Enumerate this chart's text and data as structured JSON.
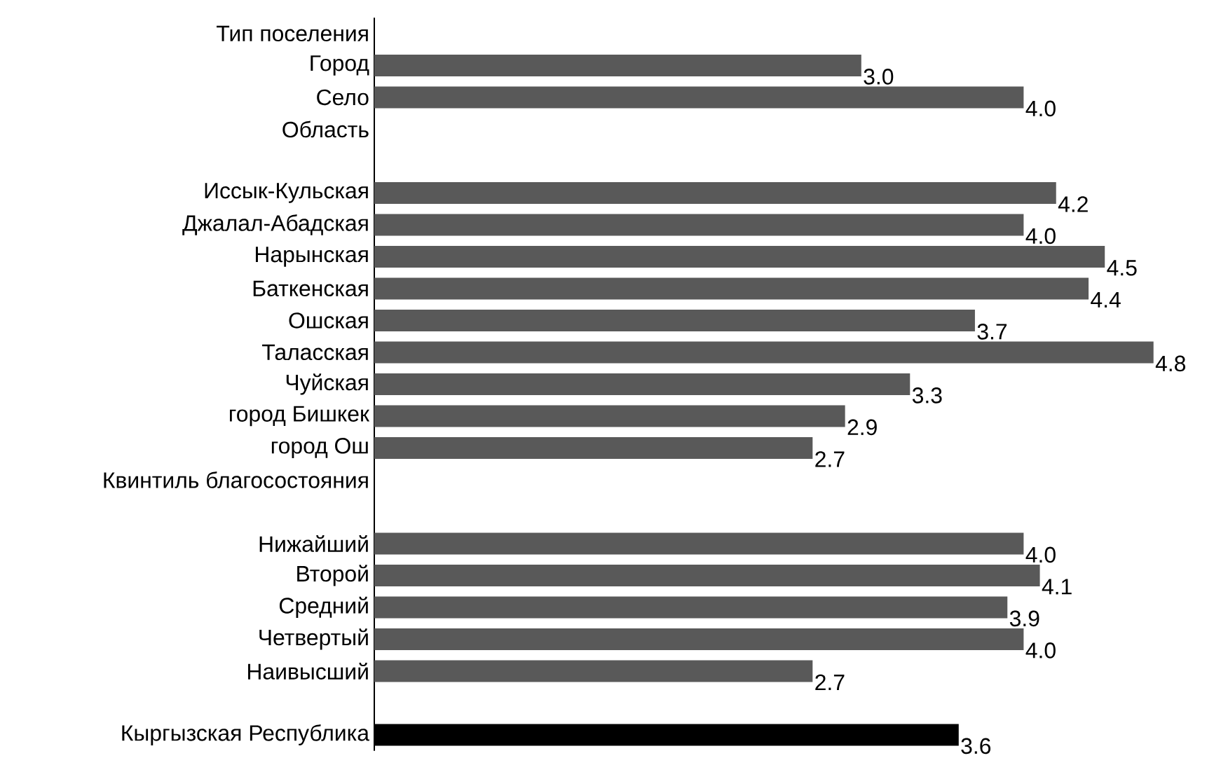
{
  "chart_data": {
    "type": "bar",
    "orientation": "horizontal",
    "categories": [
      "Тип поселения",
      "Город",
      "Село",
      "Область",
      null,
      "Иссык-Кульская",
      "Джалал-Абадская",
      "Нарынская",
      "Баткенская",
      "Ошская",
      "Таласская",
      "Чуйская",
      "город  Бишкек",
      "город Ош",
      "Квинтиль благосостояния",
      null,
      "Нижайший",
      "Второй",
      "Средний",
      "Четвертый",
      "Наивысший",
      null,
      "Кыргызская Республика"
    ],
    "values": [
      null,
      3.0,
      4.0,
      null,
      null,
      4.2,
      4.0,
      4.5,
      4.4,
      3.7,
      4.8,
      3.3,
      2.9,
      2.7,
      null,
      null,
      4.0,
      4.1,
      3.9,
      4.0,
      2.7,
      null,
      3.6
    ],
    "value_labels": [
      null,
      "3.0",
      "4.0",
      null,
      null,
      "4.2",
      "4.0",
      "4.5",
      "4.4",
      "3.7",
      "4.8",
      "3.3",
      "2.9",
      "2.7",
      null,
      null,
      "4.0",
      "4.1",
      "3.9",
      "4.0",
      "2.7",
      null,
      "3.6"
    ],
    "colors": [
      "#595959",
      "#595959",
      "#595959",
      "#595959",
      "#595959",
      "#595959",
      "#595959",
      "#595959",
      "#595959",
      "#595959",
      "#595959",
      "#595959",
      "#595959",
      "#595959",
      "#595959",
      "#595959",
      "#595959",
      "#595959",
      "#595959",
      "#595959",
      "#595959",
      "#595959",
      "#000000"
    ]
  }
}
